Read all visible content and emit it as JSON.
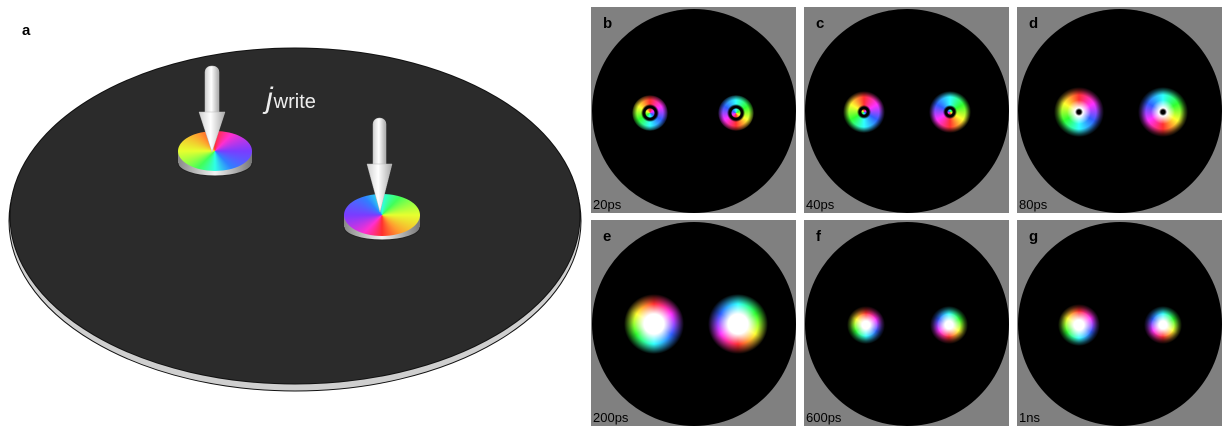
{
  "panel_a": {
    "label": "a",
    "current_symbol": "j",
    "current_subscript": "write"
  },
  "panels": [
    {
      "label": "b",
      "time": "20ps"
    },
    {
      "label": "c",
      "time": "40ps"
    },
    {
      "label": "d",
      "time": "80ps"
    },
    {
      "label": "e",
      "time": "200ps"
    },
    {
      "label": "f",
      "time": "600ps"
    },
    {
      "label": "g",
      "time": "1ns"
    }
  ],
  "colors": {
    "background": "#ffffff",
    "disk_surface": "#2b2b2b",
    "panel_background": "#808080",
    "simulation_background": "#000000"
  }
}
